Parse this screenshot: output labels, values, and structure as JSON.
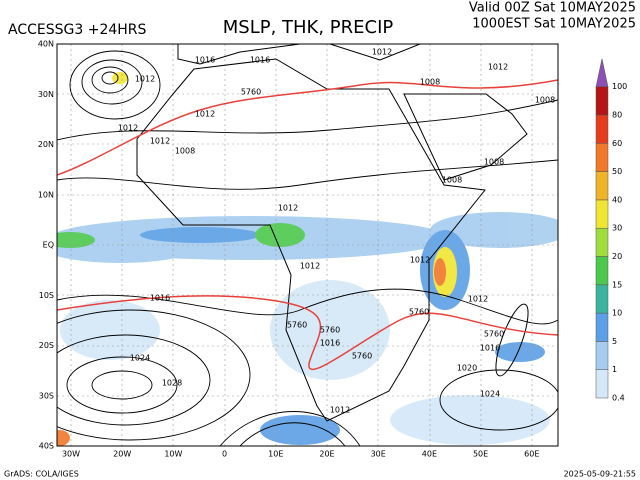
{
  "header": {
    "model": "ACCESSG3 +24HRS",
    "title": "MSLP, THK, PRECIP",
    "valid": "Valid 00Z Sat 10MAY2025",
    "local": "1000EST Sat 10MAY2025"
  },
  "map": {
    "lat_labels": [
      "40N",
      "30N",
      "20N",
      "10N",
      "EQ",
      "10S",
      "20S",
      "30S",
      "40S"
    ],
    "lon_labels": [
      "30W",
      "20W",
      "10W",
      "0",
      "10E",
      "20E",
      "30E",
      "40E",
      "50E",
      "60E"
    ],
    "isobar_labels": [
      1012,
      1016,
      1012,
      1012,
      1008,
      1016,
      1012,
      1008,
      1012,
      1008,
      1008,
      1008,
      1012,
      1012,
      1012,
      1012,
      1016,
      1024,
      1028,
      1016,
      1012,
      1016,
      1020,
      1024,
      1012
    ],
    "thickness_labels": [
      "5760",
      "5760",
      "5760",
      "5760",
      "5760",
      "5760"
    ]
  },
  "colorbar": {
    "levels": [
      0.4,
      1,
      5,
      10,
      15,
      20,
      30,
      40,
      50,
      60,
      80,
      100
    ],
    "colors": [
      "#d4e8f8",
      "#a6cdf0",
      "#5c9fe6",
      "#3cb49c",
      "#4cc84c",
      "#a0dc3c",
      "#f0e632",
      "#f0b428",
      "#f07828",
      "#e63c1e",
      "#b41414",
      "#8c50b4"
    ]
  },
  "footer": {
    "credit": "GrADS: COLA/IGES",
    "timestamp": "2025-05-09-21:55"
  }
}
